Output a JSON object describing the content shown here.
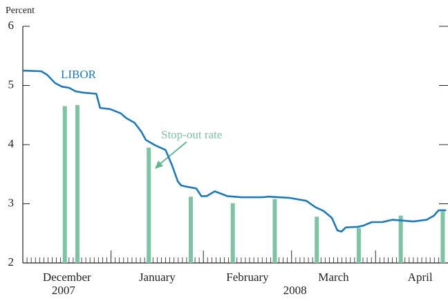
{
  "chart_data": {
    "type": "line",
    "ylabel": "Percent",
    "xlim": [
      0,
      101
    ],
    "ylim": [
      2,
      6
    ],
    "yticks": [
      2,
      3,
      4,
      5,
      6
    ],
    "xticks": [
      0,
      21,
      43,
      64,
      84
    ],
    "xticks_minor": [
      1,
      2,
      3,
      4,
      5,
      6,
      7,
      8,
      9,
      10,
      11,
      12,
      13,
      14,
      15,
      16,
      17,
      18,
      19,
      20,
      22,
      23,
      24,
      25,
      26,
      27,
      28,
      29,
      30,
      31,
      32,
      33,
      34,
      35,
      36,
      37,
      38,
      39,
      40,
      41,
      42,
      44,
      45,
      46,
      47,
      48,
      49,
      50,
      51,
      52,
      53,
      54,
      55,
      56,
      57,
      58,
      59,
      60,
      61,
      62,
      63,
      65,
      66,
      67,
      68,
      69,
      70,
      71,
      72,
      73,
      74,
      75,
      76,
      77,
      78,
      79,
      80,
      81,
      82,
      83,
      85,
      86,
      87,
      88,
      89,
      90,
      91,
      92,
      93,
      94,
      95,
      96,
      97,
      98,
      99,
      100
    ],
    "xlabels": [
      {
        "value": 10.5,
        "label": "December"
      },
      {
        "value": 32,
        "label": "January"
      },
      {
        "value": 53.5,
        "label": "February"
      },
      {
        "value": 74,
        "label": "March"
      },
      {
        "value": 94.6,
        "label": "April"
      }
    ],
    "year_labels": [
      {
        "value": 9.7,
        "label": "2007"
      },
      {
        "value": 64.8,
        "label": "2008"
      }
    ],
    "series": [
      {
        "name": "LIBOR",
        "color": "#1a7ac0",
        "type": "line",
        "x": [
          0,
          4.4,
          5.8,
          7.7,
          9.3,
          11,
          12.6,
          14.3,
          17.5,
          18.4,
          20.8,
          23.3,
          24.6,
          26.6,
          28.2,
          29.3,
          31.5,
          34,
          35.6,
          36.9,
          37.7,
          38.9,
          41.3,
          42.5,
          43.8,
          45.7,
          48.7,
          52,
          56.9,
          58.5,
          63.4,
          67.5,
          69.7,
          71.6,
          73.6,
          74.9,
          75.9,
          76.9,
          79.8,
          81.1,
          83.1,
          85.6,
          88,
          93,
          96.2,
          97.9,
          99,
          100.8
        ],
        "values": [
          5.25,
          5.24,
          5.18,
          5.04,
          4.98,
          4.96,
          4.9,
          4.88,
          4.86,
          4.62,
          4.6,
          4.53,
          4.45,
          4.37,
          4.22,
          4.08,
          3.99,
          3.91,
          3.64,
          3.38,
          3.31,
          3.29,
          3.26,
          3.13,
          3.13,
          3.21,
          3.13,
          3.11,
          3.11,
          3.12,
          3.1,
          3.05,
          2.94,
          2.88,
          2.76,
          2.55,
          2.53,
          2.6,
          2.61,
          2.63,
          2.69,
          2.69,
          2.73,
          2.7,
          2.73,
          2.8,
          2.89,
          2.89
        ]
      },
      {
        "name": "Stop-out rate",
        "color": "#7cc4a3",
        "type": "bar",
        "x": [
          10,
          13,
          30,
          40,
          50,
          60,
          70,
          80,
          90,
          100
        ],
        "values": [
          4.65,
          4.67,
          3.95,
          3.12,
          3.01,
          3.08,
          2.78,
          2.59,
          2.8,
          2.87
        ]
      }
    ]
  }
}
